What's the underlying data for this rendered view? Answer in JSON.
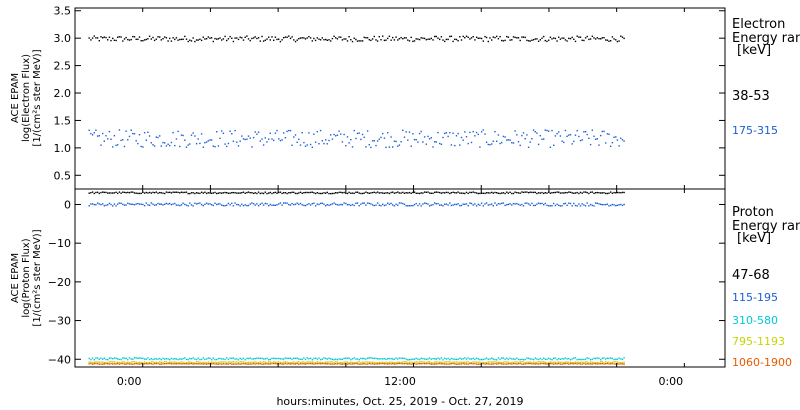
{
  "chart_data": [
    {
      "type": "scatter",
      "panel": "electron",
      "ylabel_lines": [
        "ACE EPAM",
        "log(Electron Flux)",
        "[1/(cm²s ster MeV)]"
      ],
      "ylim": [
        0.25,
        3.55
      ],
      "yticks": [
        {
          "v": 0.5,
          "label": "0.5"
        },
        {
          "v": 1.0,
          "label": "1.0"
        },
        {
          "v": 1.5,
          "label": "1.5"
        },
        {
          "v": 2.0,
          "label": "2.0"
        },
        {
          "v": 2.5,
          "label": "2.5"
        },
        {
          "v": 3.0,
          "label": "3.0"
        },
        {
          "v": 3.5,
          "label": "3.5"
        }
      ],
      "legend_title": [
        "Electron",
        "Energy ran",
        "[keV]"
      ],
      "series": [
        {
          "name": "38-53",
          "color": "#000000",
          "x_range": [
            -3,
            36.5
          ],
          "center": 3.0,
          "spread": 0.05
        },
        {
          "name": "175-315",
          "color": "#1a5fd6",
          "x_range": [
            -3,
            36.5
          ],
          "center": 1.18,
          "spread": 0.16
        }
      ]
    },
    {
      "type": "scatter",
      "panel": "proton",
      "ylabel_lines": [
        "ACE EPAM",
        "log(Proton Flux)",
        "[1/(cm²s ster MeV)]"
      ],
      "ylim": [
        -42,
        4
      ],
      "yticks": [
        {
          "v": 0,
          "label": "0"
        },
        {
          "v": -10,
          "label": "−10"
        },
        {
          "v": -20,
          "label": "−20"
        },
        {
          "v": -30,
          "label": "−30"
        },
        {
          "v": -40,
          "label": "−40"
        }
      ],
      "legend_title": [
        "Proton",
        "Energy ran",
        "[keV]"
      ],
      "series": [
        {
          "name": "47-68",
          "color": "#000000",
          "x_range": [
            -3,
            36.5
          ],
          "center": 3.2,
          "spread": 0.2
        },
        {
          "name": "115-195",
          "color": "#1a5fd6",
          "x_range": [
            -3,
            36.5
          ],
          "center": 0.2,
          "spread": 0.4
        },
        {
          "name": "310-580",
          "color": "#00c8d8",
          "x_range": [
            -3,
            36.5
          ],
          "center": -39.7,
          "spread": 0.25
        },
        {
          "name": "795-1193",
          "color": "#c8d400",
          "x_range": [
            -3,
            36.5
          ],
          "center": -40.6,
          "spread": 0.15
        },
        {
          "name": "1060-1900",
          "color": "#e85a00",
          "x_range": [
            -3,
            36.5
          ],
          "center": -41.0,
          "spread": 0.1
        }
      ]
    }
  ],
  "x_axis": {
    "range_hours": [
      -4,
      44
    ],
    "ticks": [
      {
        "h": 0,
        "label": "0:00"
      },
      {
        "h": 20,
        "label": "12:00"
      },
      {
        "h": 40,
        "label": "0:00"
      }
    ],
    "xlabel": "hours:minutes, Oct. 25, 2019 - Oct. 27, 2019"
  }
}
